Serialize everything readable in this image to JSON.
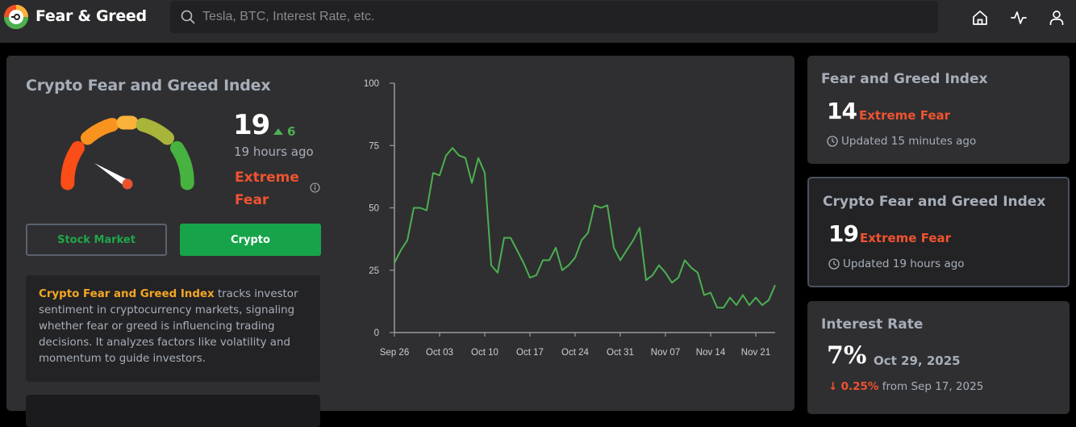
{
  "header": {
    "brand": "Fear & Greed",
    "search_placeholder": "Tesla, BTC, Interest Rate, etc.",
    "nav_icons": [
      "home-icon",
      "activity-icon",
      "user-icon"
    ]
  },
  "main": {
    "title": "Crypto Fear and Greed Index",
    "gauge": {
      "value": 19,
      "segment_colors": [
        "#fb4d17",
        "#f7931e",
        "#fbb23b",
        "#a9b43a",
        "#47b23f"
      ],
      "needle_color": "#ffffff",
      "hub_color": "#e9542f"
    },
    "value": "19",
    "change": "6",
    "change_direction": "up",
    "time_ago": "19 hours ago",
    "status": "Extreme Fear",
    "tabs": [
      {
        "label": "Stock Market",
        "active": false
      },
      {
        "label": "Crypto",
        "active": true
      }
    ],
    "description": {
      "highlight": "Crypto Fear and Greed Index",
      "text": " tracks investor sentiment in cryptocurrency markets, signaling whether fear or greed is influencing trading decisions. It analyzes factors like volatility and momentum to guide investors."
    }
  },
  "cards": [
    {
      "title": "Fear and Greed Index",
      "value": "14",
      "status": "Extreme Fear",
      "updated": "Updated 15 minutes ago"
    },
    {
      "title": "Crypto Fear and Greed Index",
      "value": "19",
      "status": "Extreme Fear",
      "updated": "Updated 19 hours ago",
      "selected": true
    },
    {
      "title": "Interest Rate",
      "value": "7%",
      "date": "Oct 29, 2025",
      "change": "0.25%",
      "change_direction": "down",
      "change_suffix": "from Sep 17, 2025"
    }
  ],
  "colors": {
    "accent_green": "#17a34a",
    "fear_red": "#ef5330",
    "highlight_orange": "#f5a623",
    "line_green": "#4caf50"
  },
  "chart_data": {
    "type": "line",
    "title": "",
    "xlabel": "",
    "ylabel": "",
    "ylim": [
      0,
      100
    ],
    "yticks": [
      0,
      25,
      50,
      75,
      100
    ],
    "xticks": [
      "Sep 26",
      "Oct 03",
      "Oct 10",
      "Oct 17",
      "Oct 24",
      "Oct 31",
      "Nov 07",
      "Nov 14",
      "Nov 21"
    ],
    "grid": false,
    "legend": null,
    "x_start": "Sep 26",
    "x_end": "Nov 24",
    "series": [
      {
        "name": "Crypto Fear and Greed Index",
        "color": "#4caf50",
        "values": [
          28,
          33,
          37,
          50,
          50,
          49,
          64,
          63,
          71,
          74,
          71,
          70,
          60,
          70,
          64,
          27,
          24,
          38,
          38,
          33,
          28,
          22,
          23,
          29,
          29,
          34,
          25,
          27,
          30,
          37,
          40,
          51,
          50,
          51,
          34,
          29,
          33,
          37,
          42,
          21,
          23,
          27,
          24,
          20,
          22,
          29,
          26,
          24,
          15,
          16,
          10,
          10,
          14,
          11,
          15,
          11,
          14,
          11,
          13,
          19
        ]
      }
    ]
  }
}
